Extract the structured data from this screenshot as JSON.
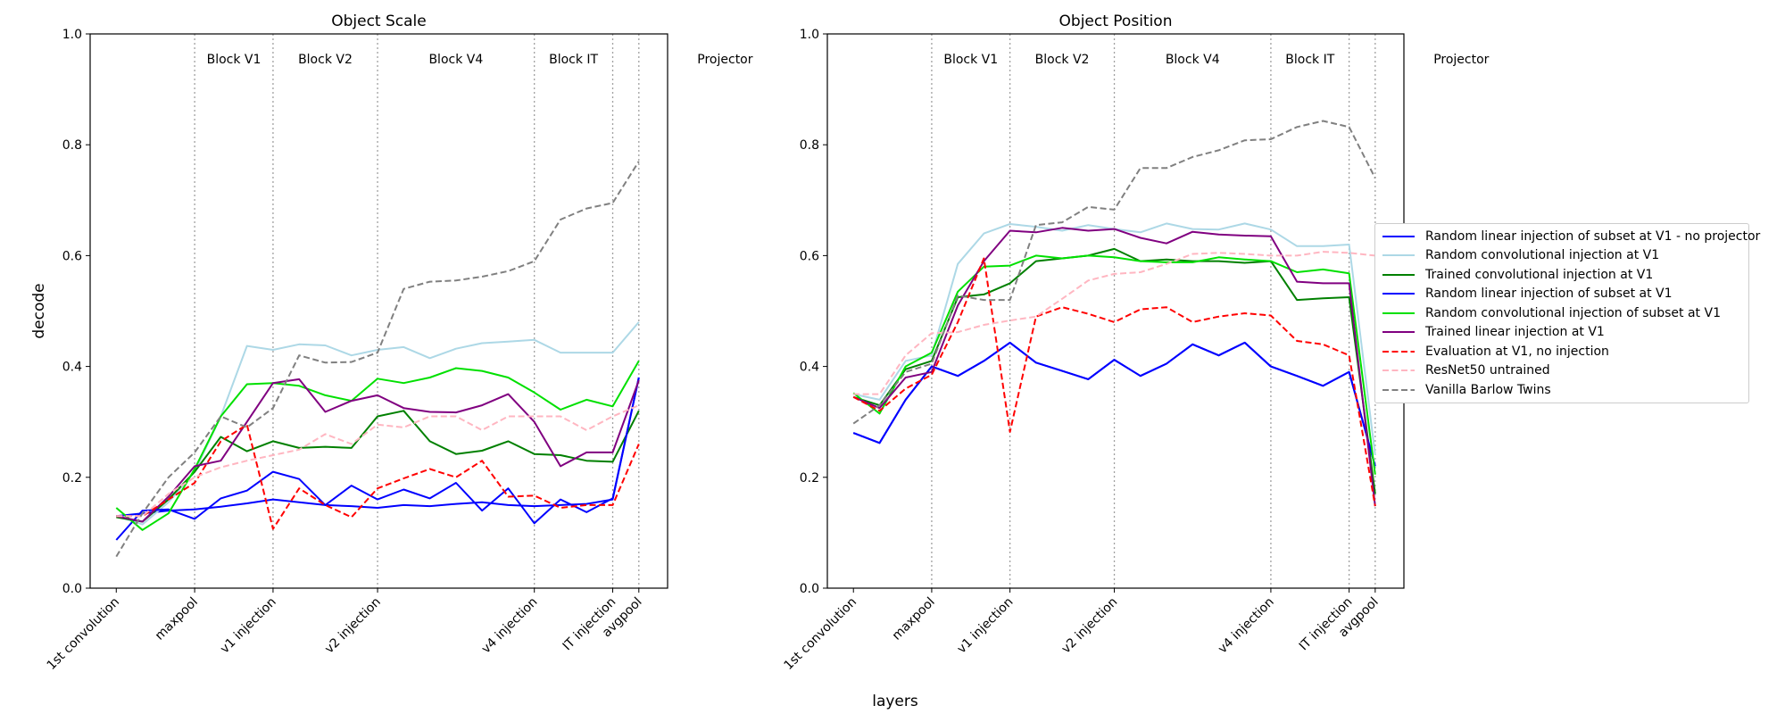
{
  "figure": {
    "xlabel": "layers",
    "xlabel_note": ""
  },
  "chart_data": [
    {
      "type": "line",
      "title": "Object Scale",
      "xlabel": "",
      "ylabel": "decode",
      "ylim": [
        0,
        1.0
      ],
      "yticks": [
        "0.0",
        "0.2",
        "0.4",
        "0.6",
        "0.8",
        "1.0"
      ],
      "xticks": [
        "1st convolution",
        "maxpool",
        "v1 injection",
        "v2 injection",
        "v4 injection",
        "IT injection",
        "avgpool"
      ],
      "xtick_positions": [
        0,
        3,
        6,
        10,
        16,
        19,
        20
      ],
      "region_boundaries": [
        3,
        6,
        10,
        16,
        19,
        20
      ],
      "region_labels": [
        {
          "label": "Block V1",
          "x": 4.5
        },
        {
          "label": "Block V2",
          "x": 8
        },
        {
          "label": "Block V4",
          "x": 13
        },
        {
          "label": "Block IT",
          "x": 17.5
        },
        {
          "label": "Projector",
          "x": 23.3
        }
      ],
      "x": [
        0,
        1,
        2,
        3,
        4,
        5,
        6,
        7,
        8,
        9,
        10,
        11,
        12,
        13,
        14,
        15,
        16,
        17,
        18,
        19,
        20
      ],
      "grid": false,
      "series": [
        {
          "name": "Random linear injection of subset at V1 - no projector",
          "color": "#0000ff",
          "dash": "solid",
          "values": [
            0.13,
            0.135,
            0.14,
            0.142,
            0.147,
            0.153,
            0.16,
            0.155,
            0.15,
            0.148,
            0.145,
            0.15,
            0.148,
            0.152,
            0.155,
            0.15,
            0.148,
            0.15,
            0.152,
            0.16,
            0.38
          ]
        },
        {
          "name": "Random convolutional injection at V1",
          "color": "#add8e6",
          "dash": "solid",
          "values": [
            0.13,
            0.115,
            0.155,
            0.21,
            0.31,
            0.437,
            0.43,
            0.44,
            0.438,
            0.42,
            0.43,
            0.435,
            0.415,
            0.432,
            0.442,
            0.445,
            0.448,
            0.425,
            0.425,
            0.425,
            0.48
          ]
        },
        {
          "name": "Trained convolutional injection at V1",
          "color": "#008000",
          "dash": "solid",
          "values": [
            0.128,
            0.12,
            0.16,
            0.21,
            0.273,
            0.247,
            0.265,
            0.253,
            0.255,
            0.253,
            0.31,
            0.32,
            0.265,
            0.242,
            0.248,
            0.265,
            0.242,
            0.24,
            0.23,
            0.228,
            0.32
          ]
        },
        {
          "name": "Random linear injection of subset at V1",
          "color": "#0000ff",
          "dash": "solid",
          "values": [
            0.087,
            0.14,
            0.142,
            0.125,
            0.162,
            0.176,
            0.21,
            0.197,
            0.15,
            0.185,
            0.16,
            0.178,
            0.162,
            0.19,
            0.14,
            0.18,
            0.117,
            0.16,
            0.137,
            0.162,
            0.38
          ]
        },
        {
          "name": "Random convolutional injection of subset at V1",
          "color": "#00e000",
          "dash": "solid",
          "values": [
            0.145,
            0.105,
            0.135,
            0.215,
            0.31,
            0.368,
            0.37,
            0.365,
            0.348,
            0.338,
            0.378,
            0.37,
            0.38,
            0.397,
            0.392,
            0.38,
            0.353,
            0.322,
            0.34,
            0.328,
            0.41
          ]
        },
        {
          "name": "Trained linear injection at V1",
          "color": "#800080",
          "dash": "solid",
          "values": [
            0.13,
            0.12,
            0.165,
            0.22,
            0.23,
            0.3,
            0.37,
            0.377,
            0.318,
            0.338,
            0.348,
            0.325,
            0.318,
            0.317,
            0.33,
            0.35,
            0.3,
            0.22,
            0.245,
            0.245,
            0.375
          ]
        },
        {
          "name": "Evaluation at V1, no injection",
          "color": "#ff0000",
          "dash": "dashed",
          "values": [
            0.13,
            0.13,
            0.16,
            0.19,
            0.265,
            0.295,
            0.107,
            0.18,
            0.15,
            0.128,
            0.18,
            0.198,
            0.215,
            0.2,
            0.23,
            0.165,
            0.167,
            0.145,
            0.15,
            0.15,
            0.26
          ]
        },
        {
          "name": "ResNet50 untrained",
          "color": "#ffb6c1",
          "dash": "dashed",
          "values": [
            0.13,
            0.13,
            0.17,
            0.2,
            0.218,
            0.23,
            0.24,
            0.25,
            0.278,
            0.26,
            0.295,
            0.29,
            0.31,
            0.31,
            0.285,
            0.31,
            0.31,
            0.31,
            0.285,
            0.31,
            0.33
          ]
        },
        {
          "name": "Vanilla Barlow Twins",
          "color": "#808080",
          "dash": "dashed",
          "values": [
            0.057,
            0.135,
            0.2,
            0.245,
            0.31,
            0.29,
            0.325,
            0.42,
            0.407,
            0.408,
            0.425,
            0.54,
            0.553,
            0.555,
            0.562,
            0.572,
            0.59,
            0.665,
            0.685,
            0.695,
            0.77
          ]
        }
      ]
    },
    {
      "type": "line",
      "title": "Object Position",
      "xlabel": "",
      "ylabel": "",
      "ylim": [
        0,
        1.0
      ],
      "yticks": [
        "0.0",
        "0.2",
        "0.4",
        "0.6",
        "0.8",
        "1.0"
      ],
      "xticks": [
        "1st convolution",
        "maxpool",
        "v1 injection",
        "v2 injection",
        "v4 injection",
        "IT injection",
        "avgpool"
      ],
      "xtick_positions": [
        0,
        3,
        6,
        10,
        16,
        19,
        20
      ],
      "region_boundaries": [
        3,
        6,
        10,
        16,
        19,
        20
      ],
      "region_labels": [
        {
          "label": "Block V1",
          "x": 4.5
        },
        {
          "label": "Block V2",
          "x": 8
        },
        {
          "label": "Block V4",
          "x": 13
        },
        {
          "label": "Block IT",
          "x": 17.5
        },
        {
          "label": "Projector",
          "x": 23.3
        }
      ],
      "x": [
        0,
        1,
        2,
        3,
        4,
        5,
        6,
        7,
        8,
        9,
        10,
        11,
        12,
        13,
        14,
        15,
        16,
        17,
        18,
        19,
        20
      ],
      "grid": false,
      "series": [
        {
          "name": "Random linear injection of subset at V1 - no projector",
          "color": "#0000ff",
          "dash": "solid",
          "values": [
            0.28,
            0.262,
            0.34,
            0.4,
            0.383,
            0.41,
            0.443,
            0.407,
            0.392,
            0.377,
            0.412,
            0.383,
            0.405,
            0.44,
            0.42,
            0.443,
            0.4,
            0.383,
            0.365,
            0.39,
            0.22
          ]
        },
        {
          "name": "Random convolutional injection at V1",
          "color": "#add8e6",
          "dash": "solid",
          "values": [
            0.35,
            0.34,
            0.41,
            0.42,
            0.585,
            0.64,
            0.657,
            0.652,
            0.645,
            0.655,
            0.648,
            0.642,
            0.658,
            0.648,
            0.647,
            0.658,
            0.647,
            0.617,
            0.617,
            0.62,
            0.24
          ]
        },
        {
          "name": "Trained convolutional injection at V1",
          "color": "#008000",
          "dash": "solid",
          "values": [
            0.345,
            0.33,
            0.395,
            0.41,
            0.525,
            0.53,
            0.55,
            0.59,
            0.595,
            0.6,
            0.612,
            0.59,
            0.593,
            0.59,
            0.59,
            0.587,
            0.59,
            0.52,
            0.523,
            0.525,
            0.17
          ]
        },
        {
          "name": "Random linear injection of subset at V1",
          "color": "#0000ff",
          "dash": "solid",
          "values": [
            0.28,
            0.262,
            0.34,
            0.4,
            0.383,
            0.41,
            0.443,
            0.407,
            0.392,
            0.377,
            0.412,
            0.383,
            0.405,
            0.44,
            0.42,
            0.443,
            0.4,
            0.383,
            0.365,
            0.39,
            0.22
          ]
        },
        {
          "name": "Random convolutional injection of subset at V1",
          "color": "#00e000",
          "dash": "solid",
          "values": [
            0.352,
            0.315,
            0.4,
            0.425,
            0.535,
            0.58,
            0.582,
            0.6,
            0.595,
            0.6,
            0.597,
            0.59,
            0.588,
            0.588,
            0.597,
            0.593,
            0.59,
            0.57,
            0.575,
            0.568,
            0.205
          ]
        },
        {
          "name": "Trained linear injection at V1",
          "color": "#800080",
          "dash": "solid",
          "values": [
            0.345,
            0.325,
            0.38,
            0.39,
            0.51,
            0.59,
            0.645,
            0.642,
            0.65,
            0.645,
            0.648,
            0.632,
            0.622,
            0.643,
            0.638,
            0.636,
            0.635,
            0.553,
            0.55,
            0.55,
            0.148
          ]
        },
        {
          "name": "Evaluation at V1, no injection",
          "color": "#ff0000",
          "dash": "dashed",
          "values": [
            0.345,
            0.32,
            0.36,
            0.385,
            0.48,
            0.595,
            0.282,
            0.49,
            0.507,
            0.495,
            0.48,
            0.503,
            0.507,
            0.48,
            0.49,
            0.496,
            0.492,
            0.446,
            0.44,
            0.42,
            0.148
          ]
        },
        {
          "name": "ResNet50 untrained",
          "color": "#ffb6c1",
          "dash": "dashed",
          "values": [
            0.35,
            0.35,
            0.42,
            0.46,
            0.462,
            0.475,
            0.483,
            0.49,
            0.522,
            0.555,
            0.567,
            0.57,
            0.585,
            0.603,
            0.605,
            0.603,
            0.6,
            0.6,
            0.607,
            0.605,
            0.6
          ]
        },
        {
          "name": "Vanilla Barlow Twins",
          "color": "#808080",
          "dash": "dashed",
          "values": [
            0.297,
            0.33,
            0.39,
            0.405,
            0.528,
            0.52,
            0.52,
            0.655,
            0.66,
            0.688,
            0.683,
            0.758,
            0.758,
            0.778,
            0.79,
            0.808,
            0.81,
            0.832,
            0.843,
            0.832,
            0.74
          ]
        }
      ]
    }
  ]
}
